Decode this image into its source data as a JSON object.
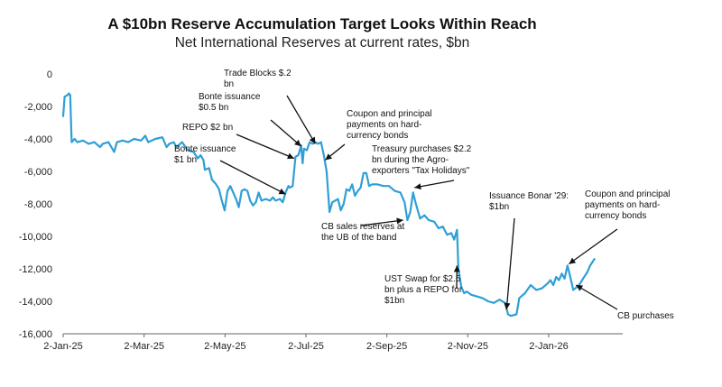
{
  "chart_data": {
    "type": "line",
    "title": "A $10bn Reserve Accumulation Target Looks Within Reach",
    "subtitle": "Net International Reserves at current rates, $bn",
    "xlabel": "",
    "ylabel": "",
    "x_ticks": [
      "2-Jan-25",
      "2-Mar-25",
      "2-May-25",
      "2-Jul-25",
      "2-Sep-25",
      "2-Nov-25",
      "2-Jan-26"
    ],
    "y_ticks": [
      0,
      -2000,
      -4000,
      -6000,
      -8000,
      -10000,
      -12000,
      -14000,
      -16000
    ],
    "ylim": [
      -16000,
      0
    ],
    "xlim_days": [
      0,
      395
    ],
    "grid": false,
    "series": [
      {
        "name": "Net International Reserves",
        "color": "#2f9fd6",
        "points": [
          [
            0,
            -2600
          ],
          [
            1,
            -1400
          ],
          [
            3,
            -1300
          ],
          [
            4,
            -1200
          ],
          [
            5,
            -1300
          ],
          [
            6,
            -4200
          ],
          [
            8,
            -4000
          ],
          [
            10,
            -4200
          ],
          [
            14,
            -4100
          ],
          [
            18,
            -4300
          ],
          [
            22,
            -4200
          ],
          [
            26,
            -4500
          ],
          [
            28,
            -4300
          ],
          [
            32,
            -4200
          ],
          [
            36,
            -4800
          ],
          [
            38,
            -4200
          ],
          [
            42,
            -4100
          ],
          [
            46,
            -4200
          ],
          [
            50,
            -4000
          ],
          [
            55,
            -4100
          ],
          [
            58,
            -3800
          ],
          [
            60,
            -4200
          ],
          [
            65,
            -4000
          ],
          [
            70,
            -3900
          ],
          [
            73,
            -4500
          ],
          [
            75,
            -4300
          ],
          [
            78,
            -4200
          ],
          [
            80,
            -4500
          ],
          [
            84,
            -4200
          ],
          [
            88,
            -4700
          ],
          [
            92,
            -4800
          ],
          [
            95,
            -5200
          ],
          [
            97,
            -5000
          ],
          [
            99,
            -5300
          ],
          [
            100,
            -5900
          ],
          [
            103,
            -5800
          ],
          [
            105,
            -6500
          ],
          [
            108,
            -6800
          ],
          [
            110,
            -7100
          ],
          [
            112,
            -7800
          ],
          [
            114,
            -8400
          ],
          [
            116,
            -7200
          ],
          [
            118,
            -6900
          ],
          [
            120,
            -7300
          ],
          [
            122,
            -7700
          ],
          [
            124,
            -8200
          ],
          [
            126,
            -7200
          ],
          [
            128,
            -7100
          ],
          [
            130,
            -7200
          ],
          [
            132,
            -7800
          ],
          [
            134,
            -8100
          ],
          [
            136,
            -7900
          ],
          [
            138,
            -7300
          ],
          [
            140,
            -7800
          ],
          [
            143,
            -7700
          ],
          [
            146,
            -7800
          ],
          [
            148,
            -7600
          ],
          [
            150,
            -7800
          ],
          [
            153,
            -7700
          ],
          [
            155,
            -7900
          ],
          [
            157,
            -7300
          ],
          [
            159,
            -6900
          ],
          [
            160,
            -7000
          ],
          [
            162,
            -6900
          ],
          [
            164,
            -5100
          ],
          [
            166,
            -5000
          ],
          [
            168,
            -4400
          ],
          [
            169,
            -5500
          ],
          [
            170,
            -4600
          ],
          [
            172,
            -4700
          ],
          [
            174,
            -4200
          ],
          [
            176,
            -4300
          ],
          [
            178,
            -4200
          ],
          [
            180,
            -4300
          ],
          [
            182,
            -4200
          ],
          [
            184,
            -5000
          ],
          [
            186,
            -6000
          ],
          [
            188,
            -8500
          ],
          [
            190,
            -7900
          ],
          [
            192,
            -7800
          ],
          [
            194,
            -7700
          ],
          [
            196,
            -8400
          ],
          [
            198,
            -8000
          ],
          [
            200,
            -7100
          ],
          [
            202,
            -7200
          ],
          [
            204,
            -6800
          ],
          [
            206,
            -7500
          ],
          [
            208,
            -7200
          ],
          [
            210,
            -7000
          ],
          [
            212,
            -6100
          ],
          [
            214,
            -6100
          ],
          [
            216,
            -6900
          ],
          [
            218,
            -6800
          ],
          [
            222,
            -6800
          ],
          [
            226,
            -6900
          ],
          [
            230,
            -6900
          ],
          [
            234,
            -7200
          ],
          [
            238,
            -7300
          ],
          [
            241,
            -7900
          ],
          [
            243,
            -9000
          ],
          [
            245,
            -8500
          ],
          [
            247,
            -7300
          ],
          [
            249,
            -8000
          ],
          [
            252,
            -8900
          ],
          [
            255,
            -8700
          ],
          [
            258,
            -9000
          ],
          [
            262,
            -9100
          ],
          [
            265,
            -9500
          ],
          [
            268,
            -9400
          ],
          [
            271,
            -9900
          ],
          [
            274,
            -9800
          ],
          [
            276,
            -10200
          ],
          [
            278,
            -9600
          ],
          [
            279,
            -12000
          ],
          [
            281,
            -13100
          ],
          [
            283,
            -13500
          ],
          [
            285,
            -13400
          ],
          [
            288,
            -13600
          ],
          [
            292,
            -13700
          ],
          [
            296,
            -13800
          ],
          [
            300,
            -14000
          ],
          [
            304,
            -14100
          ],
          [
            308,
            -13900
          ],
          [
            312,
            -14100
          ],
          [
            314,
            -14800
          ],
          [
            316,
            -14900
          ],
          [
            320,
            -14800
          ],
          [
            322,
            -13800
          ],
          [
            326,
            -13500
          ],
          [
            330,
            -13000
          ],
          [
            334,
            -13300
          ],
          [
            338,
            -13200
          ],
          [
            342,
            -12900
          ],
          [
            344,
            -12700
          ],
          [
            346,
            -13000
          ],
          [
            348,
            -12500
          ],
          [
            350,
            -12700
          ],
          [
            352,
            -12300
          ],
          [
            354,
            -12600
          ],
          [
            356,
            -11800
          ],
          [
            358,
            -12500
          ],
          [
            360,
            -13300
          ],
          [
            363,
            -13100
          ],
          [
            365,
            -12900
          ],
          [
            367,
            -12600
          ],
          [
            370,
            -12200
          ],
          [
            372,
            -11800
          ],
          [
            375,
            -11400
          ]
        ]
      }
    ],
    "annotations": [
      {
        "lines": [
          "Trade Blocks $.2",
          "bn"
        ],
        "target": [
          178,
          -4300
        ]
      },
      {
        "lines": [
          "Bonte issuance",
          "$0.5 bn"
        ],
        "target": [
          168,
          -4450
        ]
      },
      {
        "lines": [
          "REPO $2 bn"
        ],
        "target": [
          163,
          -5200
        ]
      },
      {
        "lines": [
          "Bonte issuance",
          "$1 bn"
        ],
        "target": [
          157,
          -7400
        ]
      },
      {
        "lines": [
          "Coupon and principal",
          "payments on hard-",
          "currency bonds"
        ],
        "target": [
          185,
          -5300
        ]
      },
      {
        "lines": [
          "Treasury purchases $2.2",
          "bn during the Agro-",
          "exporters \"Tax Holidays\""
        ],
        "target": [
          248,
          -7000
        ]
      },
      {
        "lines": [
          "CB sales reserves at",
          "the UB of the band"
        ],
        "target": [
          240,
          -9000
        ]
      },
      {
        "lines": [
          "Issuance Bonar '29:",
          "$1bn"
        ],
        "target": [
          313,
          -14500
        ]
      },
      {
        "lines": [
          "Coupon and principal",
          "payments on hard-",
          "currency bonds"
        ],
        "target": [
          357,
          -11700
        ]
      },
      {
        "lines": [
          "UST Swap for $2.5",
          "bn plus a REPO for",
          "$1bn"
        ],
        "target": [
          278,
          -11800
        ]
      },
      {
        "lines": [
          "CB purchases"
        ],
        "target": [
          362,
          -13000
        ]
      }
    ]
  }
}
